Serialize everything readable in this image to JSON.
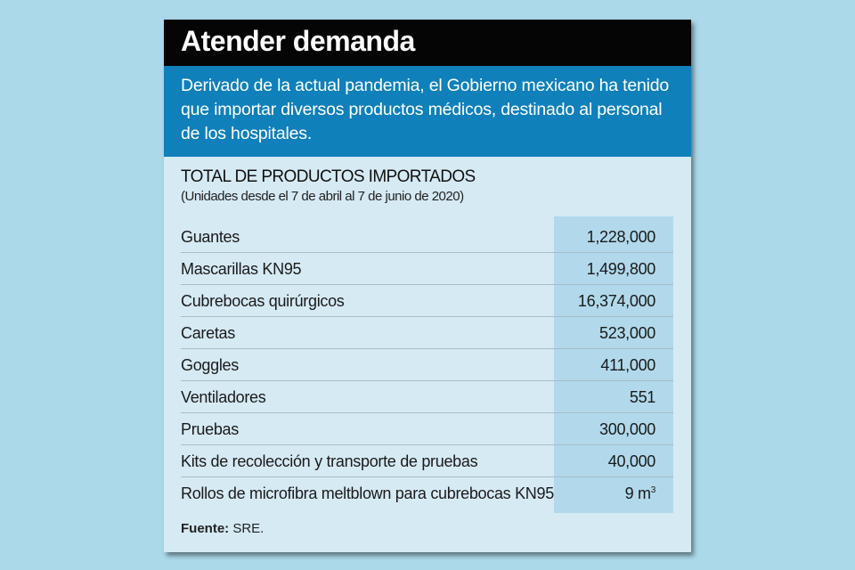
{
  "title": "Atender demanda",
  "intro": "Derivado de la actual pandemia, el Gobierno mexicano ha tenido que importar diversos productos médicos, destinado al personal de los hospitales.",
  "table": {
    "heading": "TOTAL DE PRODUCTOS IMPORTADOS",
    "subheading": "(Unidades desde el 7 de abril al 7 de junio de 2020)",
    "rows": [
      {
        "label": "Guantes",
        "value": "1,228,000"
      },
      {
        "label": "Mascarillas KN95",
        "value": "1,499,800"
      },
      {
        "label": "Cubrebocas quirúrgicos",
        "value": "16,374,000"
      },
      {
        "label": "Caretas",
        "value": "523,000"
      },
      {
        "label": "Goggles",
        "value": "411,000"
      },
      {
        "label": "Ventiladores",
        "value": "551"
      },
      {
        "label": "Pruebas",
        "value": "300,000"
      },
      {
        "label": "Kits de recolección y transporte de pruebas",
        "value": "40,000"
      },
      {
        "label": "Rollos de microfibra meltblown para cubrebocas KN95",
        "value": "9 m",
        "unit_sup": "3"
      }
    ]
  },
  "source": {
    "label": "Fuente:",
    "value": "SRE."
  },
  "colors": {
    "background": "#acd9ea",
    "card": "#d6eaf4",
    "title_band": "#050505",
    "intro_band": "#0f80ba",
    "value_column": "#b1d9eb"
  }
}
